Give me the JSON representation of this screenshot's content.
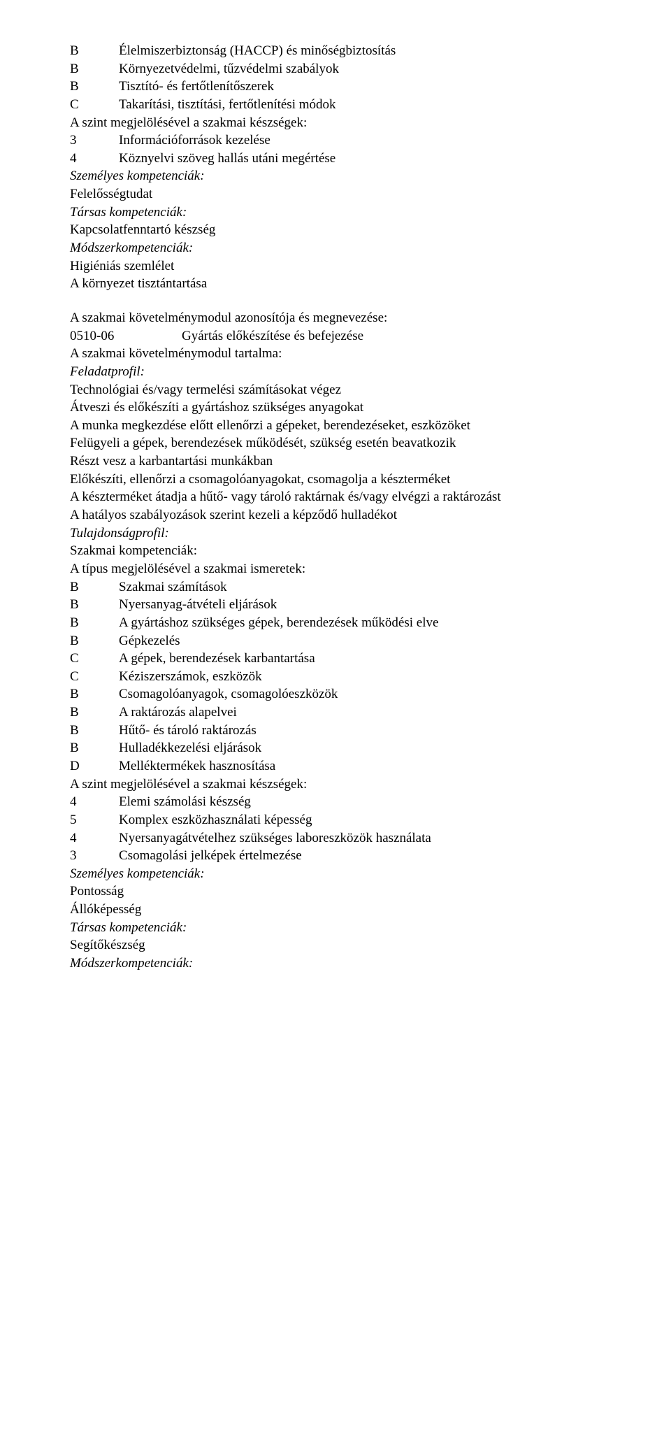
{
  "topRows": [
    {
      "code": "B",
      "text": "Élelmiszerbiztonság (HACCP) és minőségbiztosítás"
    },
    {
      "code": "B",
      "text": "Környezetvédelmi, tűzvédelmi szabályok"
    },
    {
      "code": "B",
      "text": "Tisztító- és fertőtlenítőszerek"
    },
    {
      "code": "C",
      "text": "Takarítási, tisztítási, fertőtlenítési módok"
    }
  ],
  "line_skillsIntro": "A szint megjelölésével a szakmai készségek:",
  "skillRow1": {
    "code": "3",
    "text": "Információforrások kezelése"
  },
  "skillRow2": {
    "code": "4",
    "text": "Köznyelvi szöveg hallás utáni megértése"
  },
  "line_personalCompHeader": "Személyes kompetenciák:",
  "line_personalComp1": "Felelősségtudat",
  "line_socialCompHeader": "Társas kompetenciák:",
  "line_socialComp1": "Kapcsolatfenntartó készség",
  "line_methodCompHeader": "Módszerkompetenciák:",
  "line_methodComp1": "Higiéniás szemlélet",
  "line_methodComp2": "A környezet tisztántartása",
  "line_modIdHeader": "A szakmai követelménymodul azonosítója és megnevezése:",
  "module": {
    "code": "0510-06",
    "name": "Gyártás előkészítése és befejezése"
  },
  "line_modContentHeader": "A szakmai követelménymodul tartalma:",
  "line_taskProfileHeader": "Feladatprofil:",
  "tasks": [
    "Technológiai és/vagy termelési számításokat végez",
    "Átveszi és előkészíti a gyártáshoz szükséges anyagokat",
    "A munka megkezdése előtt ellenőrzi a gépeket, berendezéseket, eszközöket",
    "Felügyeli a gépek, berendezések működését, szükség esetén beavatkozik",
    "Részt vesz a karbantartási munkákban",
    "Előkészíti, ellenőrzi a csomagolóanyagokat, csomagolja a készterméket",
    "A készterméket átadja a hűtő- vagy tároló raktárnak és/vagy elvégzi a raktározást",
    "A hatályos szabályozások szerint kezeli a képződő hulladékot"
  ],
  "line_propertyProfileHeader": "Tulajdonságprofil:",
  "line_profCompHeader": "Szakmai kompetenciák:",
  "line_typeKnowledgeIntro": "A típus megjelölésével a szakmai ismeretek:",
  "knowledgeRows": [
    {
      "code": "B",
      "text": "Szakmai számítások"
    },
    {
      "code": "B",
      "text": "Nyersanyag-átvételi eljárások"
    },
    {
      "code": "B",
      "text": "A gyártáshoz szükséges gépek, berendezések működési elve"
    },
    {
      "code": "B",
      "text": "Gépkezelés"
    },
    {
      "code": "C",
      "text": "A gépek, berendezések karbantartása"
    },
    {
      "code": "C",
      "text": "Kéziszerszámok, eszközök"
    },
    {
      "code": "B",
      "text": "Csomagolóanyagok, csomagolóeszközök"
    },
    {
      "code": "B",
      "text": "A raktározás alapelvei"
    },
    {
      "code": "B",
      "text": "Hűtő- és tároló raktározás"
    },
    {
      "code": "B",
      "text": "Hulladékkezelési eljárások"
    },
    {
      "code": "D",
      "text": "Melléktermékek hasznosítása"
    }
  ],
  "line_skillsIntro2": "A szint megjelölésével a szakmai készségek:",
  "skillRows2": [
    {
      "code": "4",
      "text": "Elemi számolási készség"
    },
    {
      "code": "5",
      "text": "Komplex eszközhasználati képesség"
    },
    {
      "code": "4",
      "text": "Nyersanyagátvételhez szükséges laboreszközök használata"
    },
    {
      "code": "3",
      "text": "Csomagolási jelképek értelmezése"
    }
  ],
  "line_personalCompHeader2": "Személyes kompetenciák:",
  "line_personalComp2a": "Pontosság",
  "line_personalComp2b": "Állóképesség",
  "line_socialCompHeader2": "Társas kompetenciák:",
  "line_socialComp2a": "Segítőkészség",
  "line_methodCompHeader2": "Módszerkompetenciák:"
}
